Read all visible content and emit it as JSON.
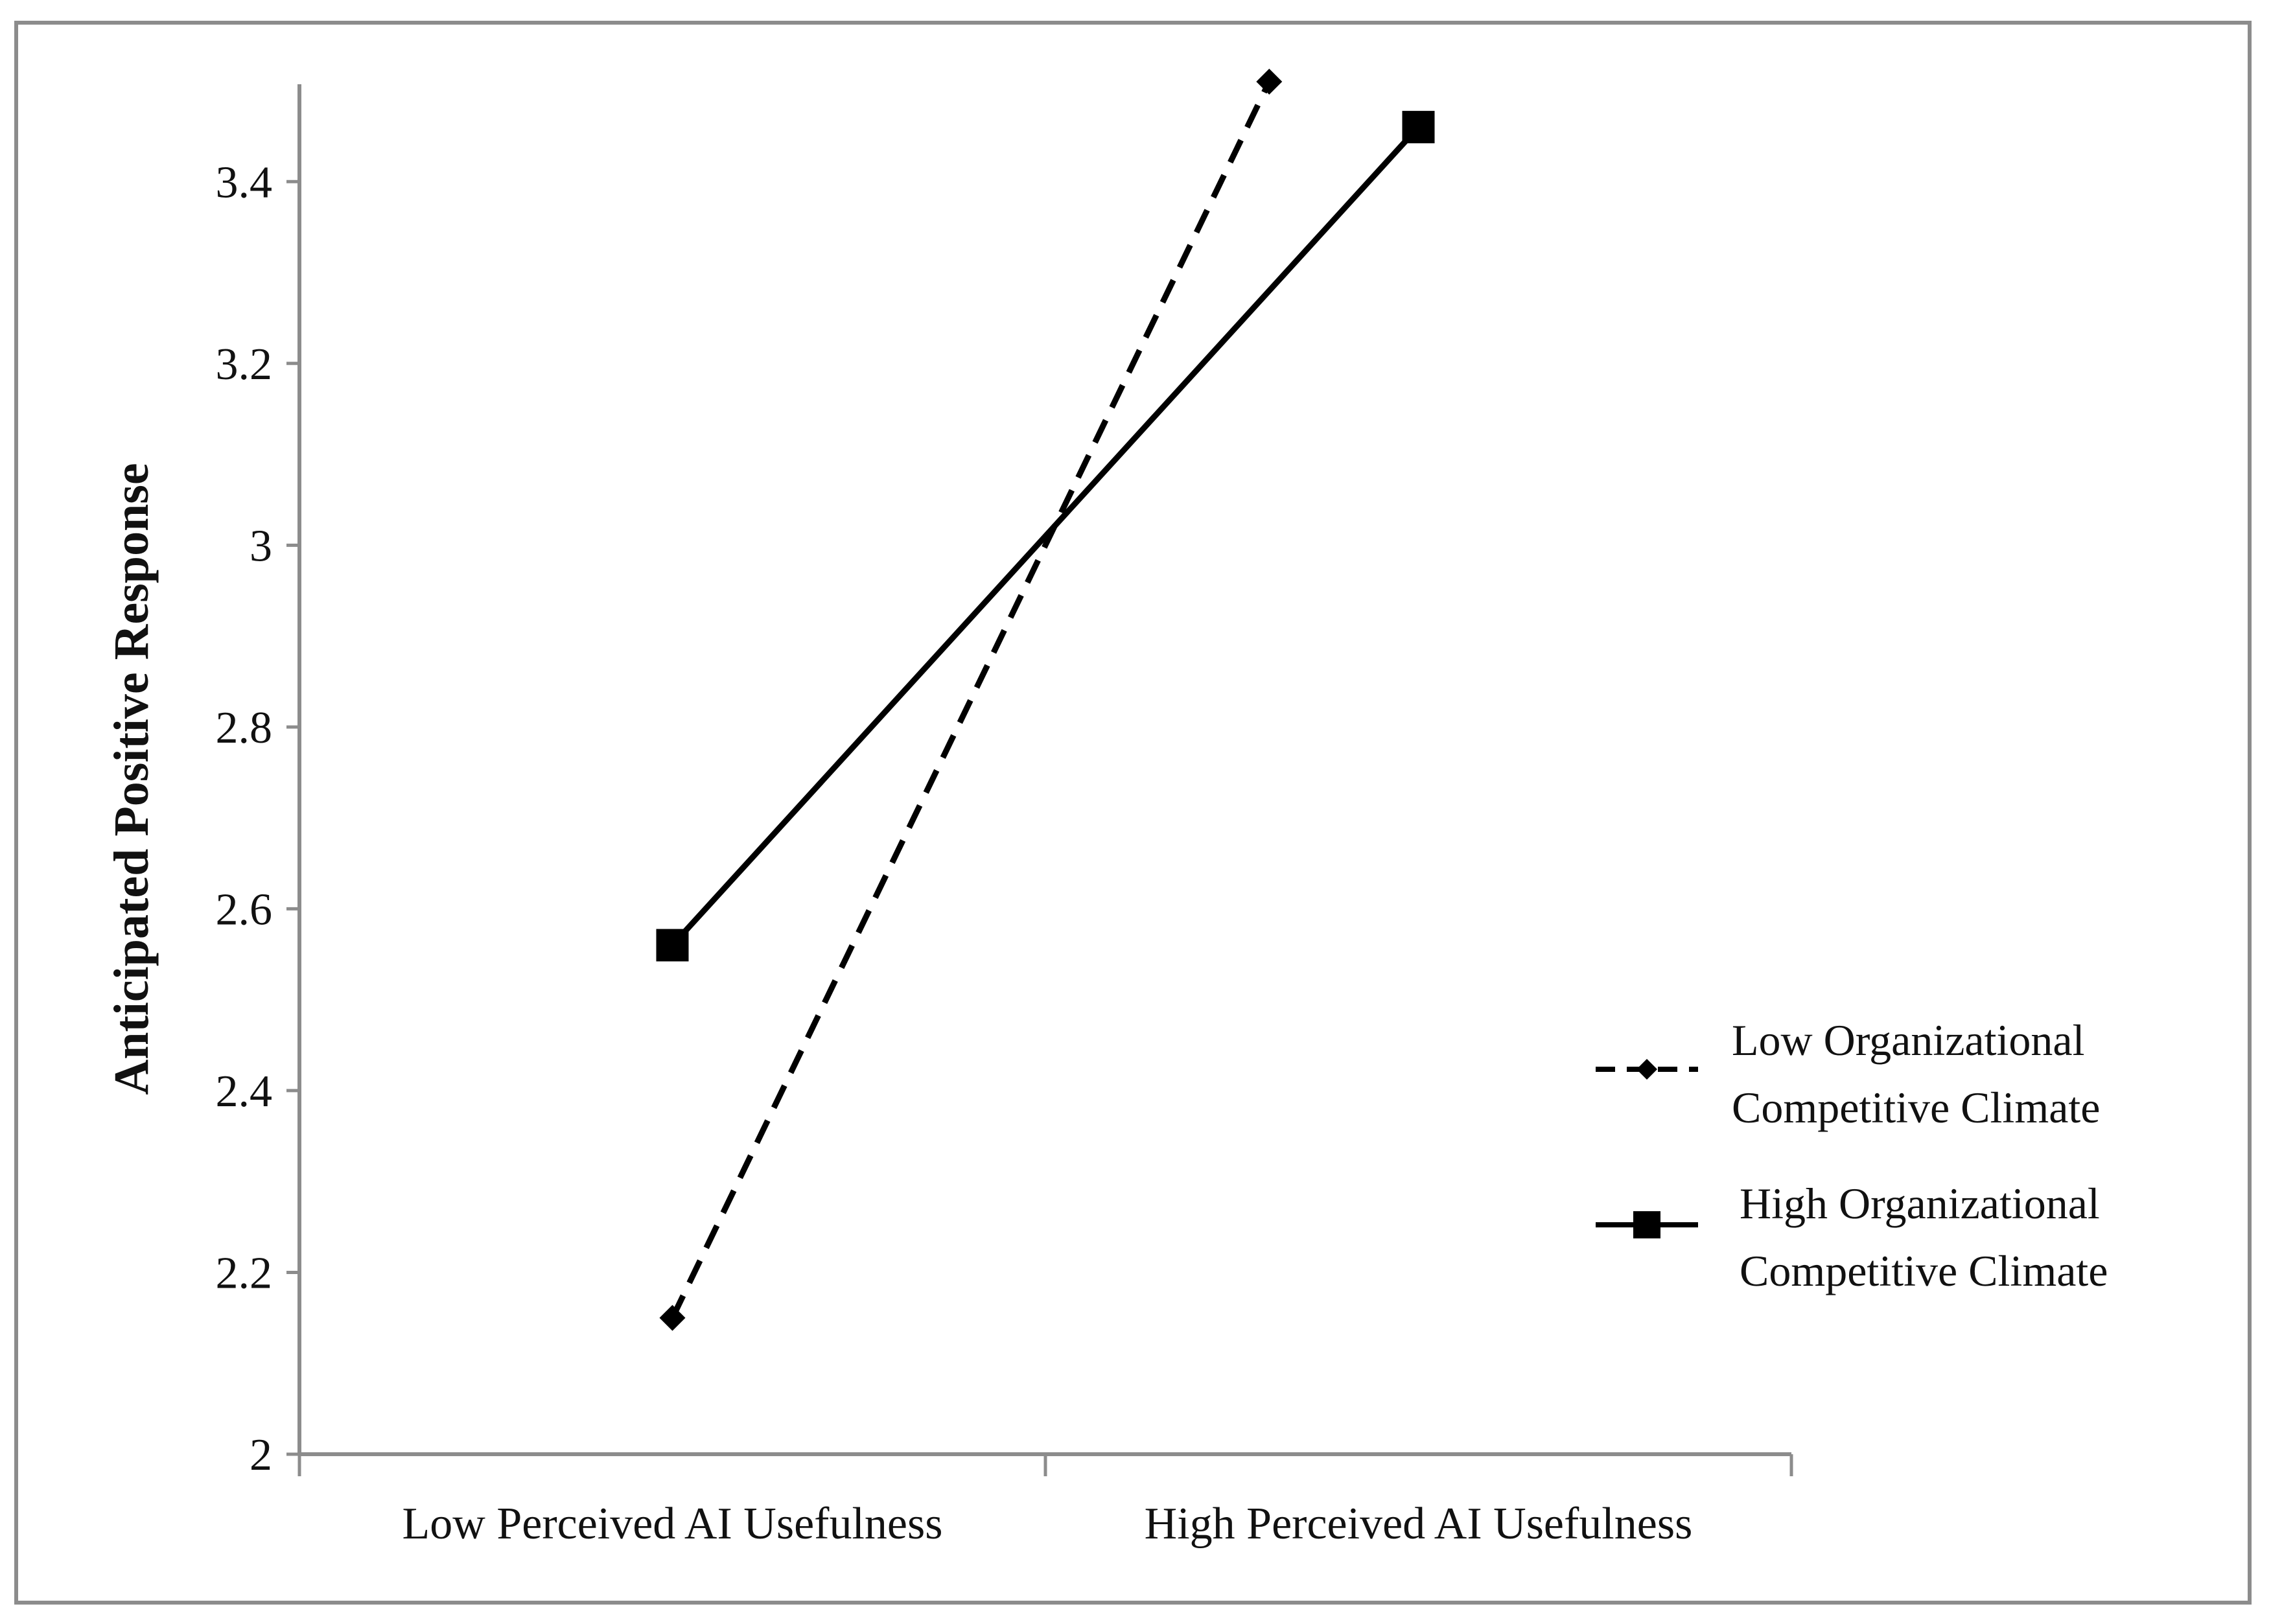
{
  "chart_data": {
    "type": "line",
    "title": "",
    "xlabel": "",
    "ylabel": "Anticipated Positive Response",
    "categories": [
      "Low Perceived AI Usefulness",
      "High Perceived AI Usefulness"
    ],
    "ylim": [
      2,
      3.5
    ],
    "yticks": [
      "2",
      "2.2",
      "2.4",
      "2.6",
      "2.8",
      "3",
      "3.2",
      "3.4"
    ],
    "grid": false,
    "legend_position": "right",
    "series": [
      {
        "name": "Low Organizational Competitive Climate",
        "name_lines": [
          "Low Organizational",
          "Competitive Climate"
        ],
        "x": [
          0,
          0.8
        ],
        "values": [
          2.15,
          3.51
        ],
        "style": "dashed",
        "marker": "diamond",
        "color": "#000000"
      },
      {
        "name": "High Organizational Competitive Climate",
        "name_lines": [
          "High Organizational",
          "Competitive Climate"
        ],
        "x": [
          0,
          1
        ],
        "values": [
          2.56,
          3.46
        ],
        "style": "solid",
        "marker": "square",
        "color": "#000000"
      }
    ]
  }
}
